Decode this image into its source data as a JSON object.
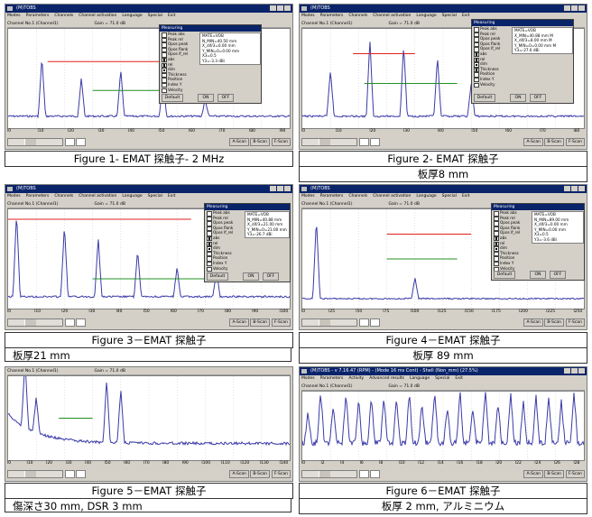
{
  "panels": [
    {
      "app_title": "(M)TOBS",
      "menu": [
        "Modes",
        "Parameters",
        "Channels",
        "Channel activation",
        "Language",
        "Special",
        "Exit"
      ],
      "channel_label": "Channel No.1 (Channel1)",
      "gain_label": "Gain = 71.0 dB",
      "x_ticks": [
        "l0",
        "l10",
        "l20",
        "l30",
        "l40",
        "l50",
        "l60",
        "l70",
        "l80",
        "l90"
      ],
      "measuring": {
        "title": "Measuring",
        "items": [
          {
            "label": "Peak abs",
            "checked": false
          },
          {
            "label": "Peak rel",
            "checked": false
          },
          {
            "label": "Opos peak",
            "checked": false
          },
          {
            "label": "Opos flank",
            "checked": false
          },
          {
            "label": "Opos lf_rel",
            "checked": false
          },
          {
            "label": "abs",
            "checked": true
          },
          {
            "label": "rel",
            "checked": true
          },
          {
            "label": "dim",
            "checked": true
          },
          {
            "label": "Thickness",
            "checked": false
          },
          {
            "label": "Position",
            "checked": false
          },
          {
            "label": "Index Y",
            "checked": false
          },
          {
            "label": "Velocity",
            "checked": false
          }
        ],
        "values": [
          "MATE=VOB",
          "N_MIN=40.50 mm",
          "X_dif/3=0.00 mm",
          "Y_MIN=0=0.00 mm",
          "X3=0.5",
          "Y3=-3.3 dBi"
        ],
        "buttons": [
          "Default",
          "ON",
          "OFF"
        ]
      },
      "bottom_buttons": [
        "A-Scan",
        "B-Scan",
        "F-Scan"
      ],
      "caption": "Figure 1- EMAT 探触子- 2 MHz"
    },
    {
      "app_title": "(M)TOBS",
      "menu": [
        "Modes",
        "Parameters",
        "Channels",
        "Channel activation",
        "Language",
        "Special",
        "Exit"
      ],
      "channel_label": "Channel No.1 (Channel1)",
      "gain_label": "Gain = 71.0 dB",
      "x_ticks": [
        "l0",
        "l10",
        "l20",
        "l30",
        "l40",
        "l50",
        "l60",
        "l70",
        "l80"
      ],
      "measuring": {
        "title": "Measuring",
        "items": [
          {
            "label": "Peak abs",
            "checked": false
          },
          {
            "label": "Peak rel",
            "checked": false
          },
          {
            "label": "Opos peak",
            "checked": false
          },
          {
            "label": "Opos flank",
            "checked": false
          },
          {
            "label": "Opos lf_rel",
            "checked": false
          },
          {
            "label": "abs",
            "checked": true
          },
          {
            "label": "rel",
            "checked": true
          },
          {
            "label": "dim",
            "checked": true
          },
          {
            "label": "Thickness",
            "checked": true
          },
          {
            "label": "Position",
            "checked": false
          },
          {
            "label": "Index Y",
            "checked": false
          },
          {
            "label": "Velocity",
            "checked": false
          }
        ],
        "values": [
          "MATE=VOB",
          "X_MIN=40.88 mm M",
          "X_dif/3=8.00 mm M",
          "Y_MIN=0=0.00 mm M",
          "Y3=-27.6 dBi"
        ],
        "buttons": [
          "Default",
          "ON",
          "OFF"
        ]
      },
      "bottom_buttons": [
        "A-Scan",
        "B-Scan",
        "F-Scan"
      ],
      "caption": "Figure 2- EMAT 探触子",
      "sub_caption": "板厚8 mm"
    },
    {
      "app_title": "(M)TOBS",
      "menu": [
        "Modes",
        "Parameters",
        "Channels",
        "Channel activation",
        "Language",
        "Special",
        "Exit"
      ],
      "channel_label": "Channel No.1 (Channel1)",
      "gain_label": "Gain = 71.0 dB",
      "x_ticks": [
        "l0",
        "l10",
        "l20",
        "l30",
        "l40",
        "l50",
        "l60",
        "l70",
        "l80",
        "l90",
        "l100"
      ],
      "measuring": {
        "title": "Measuring",
        "items": [
          {
            "label": "Peak abs",
            "checked": false
          },
          {
            "label": "Peak rel",
            "checked": false
          },
          {
            "label": "Opos peak",
            "checked": false
          },
          {
            "label": "Opos flank",
            "checked": false
          },
          {
            "label": "Opos lf_rel",
            "checked": false
          },
          {
            "label": "abs",
            "checked": true
          },
          {
            "label": "rel",
            "checked": true
          },
          {
            "label": "dim",
            "checked": true
          },
          {
            "label": "Thickness",
            "checked": false
          },
          {
            "label": "Position",
            "checked": false
          },
          {
            "label": "Index Y",
            "checked": false
          },
          {
            "label": "Velocity",
            "checked": false
          }
        ],
        "values": [
          "MATE=VOB",
          "N_MIN=40.88 mm",
          "X_dif/3=21.00 mm",
          "Y_MIN=0=21.00 mm",
          "Y3=-26.7 dBi"
        ],
        "buttons": [
          "Default",
          "ON",
          "OFF"
        ]
      },
      "bottom_buttons": [
        "A-Scan",
        "B-Scan",
        "F-Scan"
      ],
      "caption": "Figure 3－EMAT 探触子",
      "sub_caption": "板厚21 mm"
    },
    {
      "app_title": "(M)TOBS",
      "menu": [
        "Modes",
        "Parameters",
        "Channels",
        "Channel activation",
        "Language",
        "Special",
        "Exit"
      ],
      "channel_label": "Channel No.1 (Channel1)",
      "gain_label": "Gain = 71.0 dB",
      "x_ticks": [
        "l0",
        "l25",
        "l50",
        "l75",
        "l100",
        "l125",
        "l150",
        "l175",
        "l200",
        "l225",
        "l250"
      ],
      "measuring": {
        "title": "Measuring",
        "items": [
          {
            "label": "Peak abs",
            "checked": false
          },
          {
            "label": "Peak rel",
            "checked": false
          },
          {
            "label": "Opos peak",
            "checked": false
          },
          {
            "label": "Opos flank",
            "checked": false
          },
          {
            "label": "Opos lf_rel",
            "checked": false
          },
          {
            "label": "abs",
            "checked": true
          },
          {
            "label": "rel",
            "checked": true
          },
          {
            "label": "dim",
            "checked": true
          },
          {
            "label": "Thickness",
            "checked": false
          },
          {
            "label": "Position",
            "checked": false
          },
          {
            "label": "Index Y",
            "checked": false
          },
          {
            "label": "Velocity",
            "checked": false
          }
        ],
        "values": [
          "MATE=VOB",
          "N_MIN=89.00 mm",
          "X_dif/3=0.00 mm",
          "Y_MIN=0.00 mm",
          "X3=0.5",
          "Y3=-3.6 dBi"
        ],
        "buttons": [
          "Default",
          "ON",
          "OFF"
        ]
      },
      "bottom_buttons": [
        "A-Scan",
        "B-Scan",
        "F-Scan"
      ],
      "caption": "Figure 4－EMAT 探触子",
      "sub_caption": "板厚 89 mm"
    },
    {
      "app_title": "",
      "menu": [],
      "channel_label": "Channel No.1 (Channel1)",
      "gain_label": "Gain = 71.0 dB",
      "x_ticks": [
        "l0",
        "l10",
        "l20",
        "l30",
        "l40",
        "l50",
        "l60",
        "l70",
        "l80",
        "l90",
        "l100",
        "l110",
        "l120",
        "l130",
        "l140"
      ],
      "measuring": null,
      "bottom_buttons": [
        "A-Scan",
        "B-Scan",
        "F-Scan"
      ],
      "caption": "Figure 5－EMAT 探触子",
      "sub_caption": "傷深さ30 mm, DSR 3 mm"
    },
    {
      "app_title": "(M)TOBS - v 7.16.47 (RPM) - (Mode 16 ms Cont) - Shell (Non_mm) (27.5%)",
      "menu": [
        "Modes",
        "Parameters",
        "Activity",
        "Advanced results",
        "Language",
        "Special",
        "Exit"
      ],
      "channel_label": "Channel No.1 (Channel1)",
      "gain_label": "Gain = 71.0 dB",
      "x_ticks": [
        "l0",
        "l2",
        "l4",
        "l6",
        "l8",
        "l10",
        "l12",
        "l14",
        "l16",
        "l18",
        "l20",
        "l22",
        "l24",
        "l26",
        "l28"
      ],
      "measuring": null,
      "bottom_buttons": [
        "A-Scan",
        "B-Scan",
        "F-Scan"
      ],
      "caption": "Figure 6－EMAT 探触子",
      "sub_caption": "板厚 2 mm, アルミニウム"
    }
  ]
}
